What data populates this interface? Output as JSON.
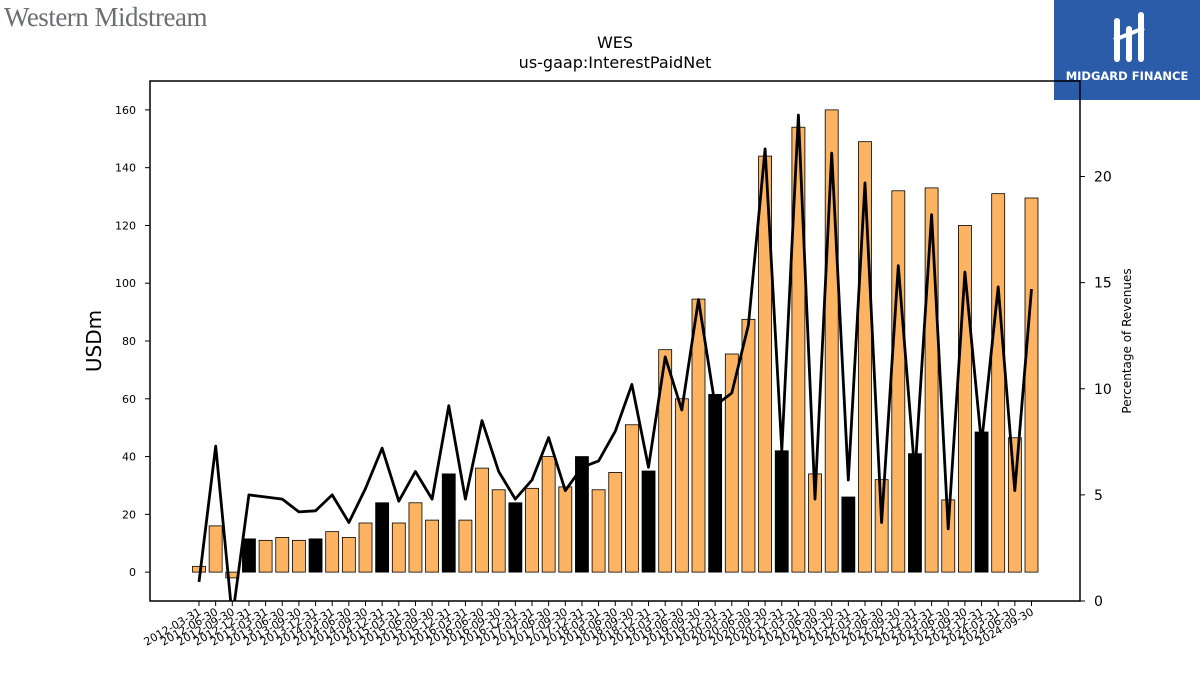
{
  "logos": {
    "left_text": "Western Midstream",
    "right_text": "MIDGARD FINANCE"
  },
  "colors": {
    "bar_fill": "#FDB462",
    "bar_highlight": "#000000",
    "line": "#000000",
    "logo_right_bg": "#2b5caa"
  },
  "chart_data": {
    "type": "bar",
    "title": "WES",
    "subtitle": "us-gaap:InterestPaidNet",
    "ylabel": "USDm",
    "ylabel_right": "Percentage of Revenues",
    "ylim": [
      -10,
      170
    ],
    "yticks": [
      0,
      20,
      40,
      60,
      80,
      100,
      120,
      140,
      160
    ],
    "ylim_right": [
      0,
      24.5
    ],
    "yticks_right": [
      0,
      5,
      10,
      15,
      20
    ],
    "grid": false,
    "categories": [
      "2012-03-31",
      "2012-06-30",
      "2012-09-30",
      "2012-12-31",
      "2013-03-31",
      "2013-06-30",
      "2013-09-30",
      "2013-12-31",
      "2014-03-31",
      "2014-06-30",
      "2014-09-30",
      "2014-12-31",
      "2015-03-31",
      "2015-06-30",
      "2015-09-30",
      "2015-12-31",
      "2016-03-31",
      "2016-06-30",
      "2016-09-30",
      "2016-12-31",
      "2017-03-31",
      "2017-06-30",
      "2017-09-30",
      "2017-12-31",
      "2018-03-31",
      "2018-06-30",
      "2018-09-30",
      "2018-12-31",
      "2019-03-31",
      "2019-06-30",
      "2019-09-30",
      "2019-12-31",
      "2020-03-31",
      "2020-06-30",
      "2020-09-30",
      "2020-12-31",
      "2021-03-31",
      "2021-06-30",
      "2021-09-30",
      "2021-12-31",
      "2022-03-31",
      "2022-06-30",
      "2022-09-30",
      "2022-12-31",
      "2023-03-31",
      "2023-06-30",
      "2023-09-30",
      "2023-12-31",
      "2024-03-31",
      "2024-06-30",
      "2024-09-30"
    ],
    "series": [
      {
        "values": [
          2,
          16,
          -2,
          11.5,
          11,
          12,
          11,
          11.5,
          14,
          12,
          17,
          24,
          17,
          24,
          18,
          34,
          18,
          36,
          28.5,
          24,
          29,
          40,
          29.5,
          40,
          28.5,
          34.5,
          51,
          35,
          77,
          60,
          94.5,
          61.5,
          75.5,
          87.5,
          144,
          42,
          154,
          34,
          160,
          26,
          149,
          32,
          132,
          41,
          133,
          25,
          120,
          48.5,
          131,
          46.5,
          129.5
        ],
        "highlight_indices": [
          3,
          7,
          11,
          15,
          19,
          23,
          27,
          31,
          35,
          39,
          43,
          47
        ]
      },
      {
        "values": [
          0.9,
          7.3,
          -0.8,
          5.0,
          4.9,
          4.8,
          4.2,
          4.25,
          5.0,
          3.7,
          5.3,
          7.2,
          4.7,
          6.1,
          4.8,
          9.2,
          4.8,
          8.5,
          6.1,
          4.8,
          5.7,
          7.7,
          5.2,
          6.3,
          6.6,
          8.0,
          10.2,
          6.3,
          11.5,
          9.0,
          14.2,
          9.2,
          9.8,
          13.0,
          21.3,
          7.1,
          22.9,
          4.8,
          21.1,
          5.7,
          19.7,
          3.7,
          15.8,
          6.0,
          18.2,
          3.4,
          15.5,
          7.4,
          14.8,
          5.2,
          14.7
        ]
      }
    ]
  }
}
